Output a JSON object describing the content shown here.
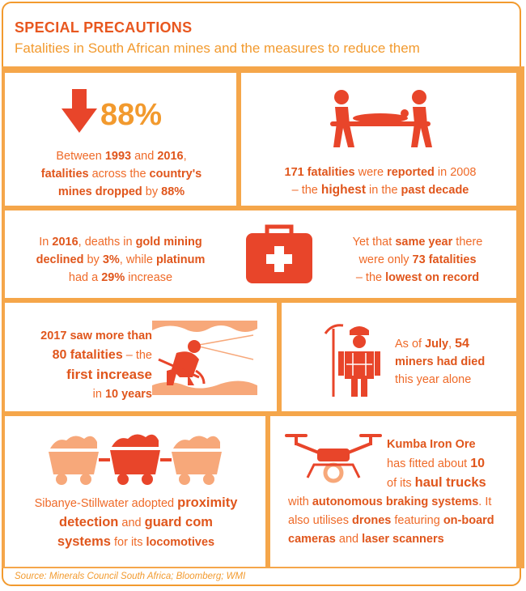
{
  "header": {
    "title": "SPECIAL PRECAUTIONS",
    "subtitle": "Fatalities in South African mines and the measures to reduce them"
  },
  "panel1": {
    "stat": "88%",
    "t1": "Between ",
    "t2": "1993",
    "t3": " and ",
    "t4": "2016",
    "t5": ",",
    "t6": "fatalities",
    "t7": " across the ",
    "t8": "country's",
    "t9": "mines",
    "t10": " dropped",
    "t11": " by ",
    "t12": "88%"
  },
  "panel2": {
    "t1": "171 fatalities",
    "t2": " were ",
    "t3": "reported",
    "t4": " in 2008",
    "t5": "– the ",
    "t6": "highest",
    "t7": " in the ",
    "t8": "past decade"
  },
  "panel3": {
    "t1": "In ",
    "t2": "2016",
    "t3": ", deaths in ",
    "t4": "gold mining",
    "t5": "declined",
    "t6": " by ",
    "t7": "3%",
    "t8": ", while ",
    "t9": "platinum",
    "t10": "had a ",
    "t11": "29%",
    "t12": " increase"
  },
  "panel4": {
    "t1": "Yet that ",
    "t2": "same year",
    "t3": " there",
    "t4": "were only ",
    "t5": "73",
    "t6": " fatalities",
    "t7": "– the ",
    "t8": "lowest on record"
  },
  "panel5": {
    "l1": "2017 saw more than",
    "l2a": "80 fatalities",
    "l2b": " – the",
    "l3": "first increase",
    "l4a": "in ",
    "l4b": "10 years"
  },
  "panel6": {
    "l1a": "As of ",
    "l1b": "July",
    "l1c": ", ",
    "l1d": "54",
    "l2": "miners had died",
    "l3": "this year alone"
  },
  "panel7": {
    "l1a": "Sibanye-Stillwater adopted ",
    "l1b": "proximity",
    "l2a": "detection",
    "l2b": " and ",
    "l2c": "guard com",
    "l3a": "systems",
    "l3b": " for its ",
    "l3c": "locomotives"
  },
  "panel8": {
    "l1": "Kumba Iron Ore",
    "l2a": "has fitted about ",
    "l2b": "10",
    "l3a": "of its ",
    "l3b": "haul trucks",
    "l4a": "with ",
    "l4b": "autonomous braking systems",
    "l4c": ". It",
    "l5a": "also utilises ",
    "l5b": "drones",
    "l5c": " featuring ",
    "l5d": "on-board",
    "l6a": "cameras",
    "l6b": " and ",
    "l6c": "laser scanners"
  },
  "source": "Source: Minerals Council South Africa; Bloomberg; WMI",
  "colors": {
    "orange": "#f29a2e",
    "red": "#e0561c",
    "light": "#f7a87a"
  }
}
